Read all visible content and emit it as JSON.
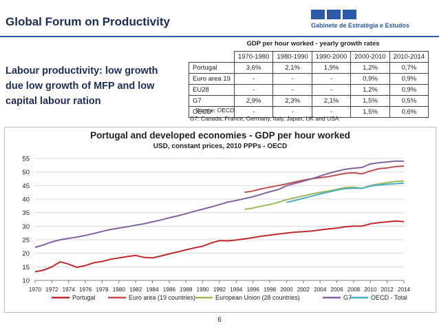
{
  "slide": {
    "title": "Global Forum on Productivity",
    "subtitle": "Labour productivity: low growth due low growth of MFP and low capital labour ration",
    "logo_text": "Gabinete de Estratégia e Estudos",
    "page_number": "6"
  },
  "table": {
    "title": "GDP per hour worked - yearly growth rates",
    "columns": [
      "",
      "1970-1980",
      "1980-1990",
      "1990-2000",
      "2000-2010",
      "2010-2014"
    ],
    "rows": [
      [
        "Portugal",
        "3,6%",
        "2,1%",
        "1,9%",
        "1,2%",
        "0,7%"
      ],
      [
        "Euro area 19",
        "-",
        "-",
        "-",
        "0,9%",
        "0,9%"
      ],
      [
        "EU28",
        "-",
        "-",
        "-",
        "1,2%",
        "0,9%"
      ],
      [
        "G7",
        "2,9%",
        "2,3%",
        "2,1%",
        "1,5%",
        "0,5%"
      ],
      [
        "OECD",
        "-",
        "-",
        "-",
        "1,5%",
        "0,6%"
      ]
    ],
    "source": "Source: OECD",
    "note": "G7: Canada, France, Germany, Italy, Japan, UK and USA"
  },
  "chart_data": {
    "type": "line",
    "title": "Portugal and developed economies - GDP per hour worked",
    "subtitle": "USD, constant prices, 2010 PPPs - OECD",
    "xlabel": "",
    "ylabel": "",
    "ylim": [
      10,
      55
    ],
    "xlim": [
      1970,
      2014
    ],
    "y_ticks": [
      10,
      15,
      20,
      25,
      30,
      35,
      40,
      45,
      50,
      55
    ],
    "x_ticks": [
      1970,
      1972,
      1974,
      1976,
      1978,
      1980,
      1982,
      1984,
      1986,
      1988,
      1990,
      1992,
      1994,
      1996,
      1998,
      2000,
      2002,
      2004,
      2006,
      2008,
      2010,
      2012,
      2014
    ],
    "legend_position": "bottom",
    "grid": true,
    "series": [
      {
        "name": "Portugal",
        "color": "#c0282d",
        "x": [
          1970,
          1971,
          1972,
          1973,
          1974,
          1975,
          1976,
          1977,
          1978,
          1979,
          1980,
          1981,
          1982,
          1983,
          1984,
          1985,
          1986,
          1987,
          1988,
          1989,
          1990,
          1991,
          1992,
          1993,
          1994,
          1995,
          1996,
          1997,
          1998,
          1999,
          2000,
          2001,
          2002,
          2003,
          2004,
          2005,
          2006,
          2007,
          2008,
          2009,
          2010,
          2011,
          2012,
          2013,
          2014
        ],
        "y": [
          13.2,
          13.8,
          15.0,
          16.9,
          16.0,
          14.8,
          15.5,
          16.5,
          17.0,
          17.8,
          18.3,
          18.8,
          19.2,
          18.5,
          18.3,
          19.0,
          19.8,
          20.5,
          21.3,
          22.0,
          22.6,
          23.8,
          24.7,
          24.6,
          24.9,
          25.3,
          25.8,
          26.3,
          26.7,
          27.1,
          27.5,
          27.8,
          28.0,
          28.2,
          28.6,
          29.0,
          29.3,
          29.8,
          30.0,
          30.0,
          30.9,
          31.3,
          31.6,
          31.9,
          31.7
        ]
      },
      {
        "name": "Euro area (19 countries)",
        "color": "#c0504d",
        "x": [
          1995,
          1996,
          1997,
          1998,
          1999,
          2000,
          2001,
          2002,
          2003,
          2004,
          2005,
          2006,
          2007,
          2008,
          2009,
          2010,
          2011,
          2012,
          2013,
          2014
        ],
        "y": [
          42.5,
          43.0,
          43.8,
          44.4,
          45.0,
          45.6,
          46.3,
          47.0,
          47.5,
          47.9,
          48.3,
          48.9,
          49.5,
          49.7,
          49.3,
          50.4,
          51.2,
          51.5,
          52.0,
          52.2
        ]
      },
      {
        "name": "European Union (28 countries)",
        "color": "#9bbb59",
        "x": [
          1995,
          1996,
          1997,
          1998,
          1999,
          2000,
          2001,
          2002,
          2003,
          2004,
          2005,
          2006,
          2007,
          2008,
          2009,
          2010,
          2011,
          2012,
          2013,
          2014
        ],
        "y": [
          36.2,
          36.7,
          37.4,
          38.0,
          38.8,
          39.8,
          40.5,
          41.2,
          41.9,
          42.5,
          43.0,
          43.6,
          44.3,
          44.4,
          44.0,
          45.0,
          45.6,
          46.1,
          46.5,
          46.7
        ]
      },
      {
        "name": "G7",
        "color": "#8064a2",
        "x": [
          1970,
          1971,
          1972,
          1973,
          1974,
          1975,
          1976,
          1977,
          1978,
          1979,
          1980,
          1981,
          1982,
          1983,
          1984,
          1985,
          1986,
          1987,
          1988,
          1989,
          1990,
          1991,
          1992,
          1993,
          1994,
          1995,
          1996,
          1997,
          1998,
          1999,
          2000,
          2001,
          2002,
          2003,
          2004,
          2005,
          2006,
          2007,
          2008,
          2009,
          2010,
          2011,
          2012,
          2013,
          2014
        ],
        "y": [
          22.2,
          23.1,
          24.2,
          25.0,
          25.5,
          26.0,
          26.6,
          27.3,
          28.1,
          28.8,
          29.3,
          29.8,
          30.4,
          30.9,
          31.6,
          32.3,
          33.1,
          33.8,
          34.6,
          35.5,
          36.3,
          37.1,
          38.0,
          38.9,
          39.5,
          40.2,
          40.9,
          41.8,
          42.7,
          43.5,
          44.9,
          45.8,
          46.6,
          47.5,
          48.5,
          49.5,
          50.3,
          51.0,
          51.4,
          51.7,
          53.0,
          53.4,
          53.7,
          54.0,
          54.0
        ]
      },
      {
        "name": "OECD - Total",
        "color": "#4bacc6",
        "x": [
          2000,
          2001,
          2002,
          2003,
          2004,
          2005,
          2006,
          2007,
          2008,
          2009,
          2010,
          2011,
          2012,
          2013,
          2014
        ],
        "y": [
          38.8,
          39.5,
          40.3,
          41.1,
          41.9,
          42.6,
          43.3,
          43.9,
          44.0,
          44.0,
          44.8,
          45.2,
          45.5,
          45.7,
          45.9
        ]
      }
    ]
  }
}
